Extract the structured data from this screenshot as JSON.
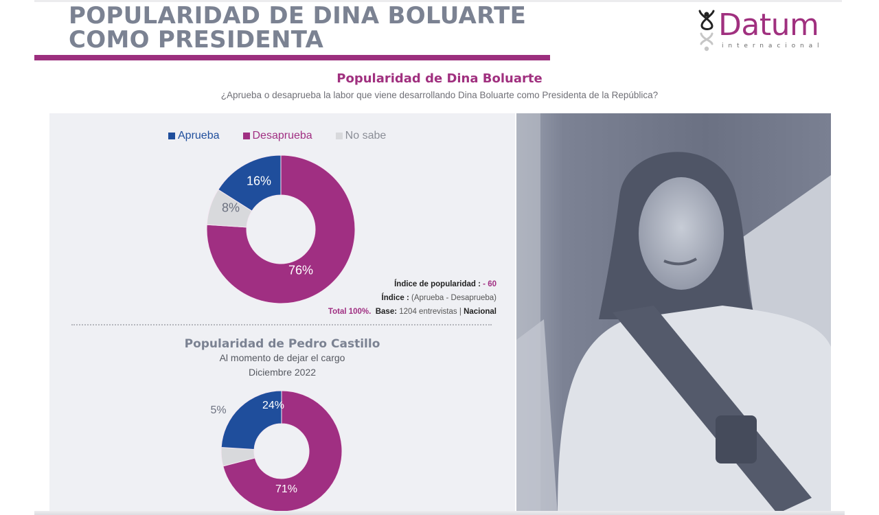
{
  "header": {
    "title_line1": "POPULARIDAD DE DINA BOLUARTE",
    "title_line2": "COMO PRESIDENTA",
    "accent_color": "#9c2f7e"
  },
  "logo": {
    "name": "Datum",
    "subtitle": "internacional",
    "color": "#a0307f"
  },
  "section": {
    "title": "Popularidad de Dina Boluarte",
    "question": "¿Aprueba o desaprueba la labor que viene desarrollando Dina Boluarte como Presidenta de la República?"
  },
  "legend": [
    {
      "label": "Aprueba",
      "color": "#1f4e9c"
    },
    {
      "label": "Desaprueba",
      "color": "#a02f82"
    },
    {
      "label": "No sabe",
      "color": "#d8d9dc"
    }
  ],
  "notes": {
    "index_label": "Índice de popularidad :",
    "index_value": "- 60",
    "formula_label": "Índice :",
    "formula_value": "(Aprueba - Desaprueba)",
    "total": "Total 100%.",
    "base_label": "Base:",
    "base_value": "1204 entrevistas",
    "separator": "|",
    "scope": "Nacional"
  },
  "castillo": {
    "title": "Popularidad de Pedro Castillo",
    "subtitle1": "Al momento de dejar el cargo",
    "subtitle2": "Diciembre 2022"
  },
  "photo": {
    "alt": "Dina Boluarte con banda presidencial"
  },
  "chart_data": [
    {
      "type": "pie",
      "variant": "donut",
      "title": "Popularidad de Dina Boluarte",
      "subtitle": "¿Aprueba o desaprueba la labor que viene desarrollando Dina Boluarte como Presidenta de la República?",
      "categories": [
        "Aprueba",
        "Desaprueba",
        "No sabe"
      ],
      "values": [
        16,
        76,
        8
      ],
      "labels": [
        "16%",
        "76%",
        "8%"
      ],
      "colors": [
        "#1f4e9c",
        "#a02f82",
        "#d8d9dc"
      ],
      "legend_position": "top",
      "annotations": [
        "Índice de popularidad : - 60",
        "Índice : (Aprueba - Desaprueba)",
        "Total 100%. Base: 1204 entrevistas | Nacional"
      ]
    },
    {
      "type": "pie",
      "variant": "donut",
      "title": "Popularidad de Pedro Castillo",
      "subtitle": "Al momento de dejar el cargo — Diciembre 2022",
      "categories": [
        "Aprueba",
        "Desaprueba",
        "No sabe"
      ],
      "values": [
        24,
        71,
        5
      ],
      "labels": [
        "24%",
        "71%",
        "5%"
      ],
      "colors": [
        "#1f4e9c",
        "#a02f82",
        "#d8d9dc"
      ]
    }
  ]
}
